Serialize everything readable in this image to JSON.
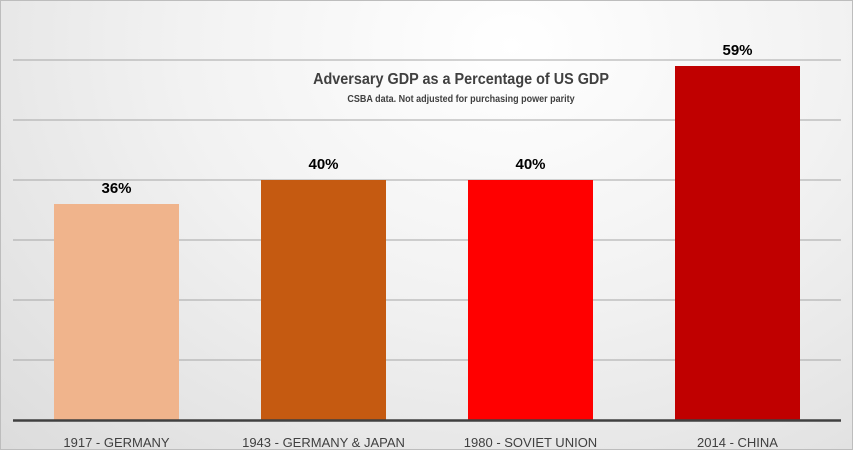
{
  "chart_data": {
    "type": "bar",
    "title": "Adversary GDP  as a Percentage of US GDP",
    "subtitle": "CSBA data. Not adjusted for purchasing power parity",
    "categories": [
      "1917 - GERMANY",
      "1943 - GERMANY & JAPAN",
      "1980 - SOVIET UNION",
      "2014 - CHINA"
    ],
    "values": [
      36,
      40,
      40,
      59
    ],
    "data_labels": [
      "36%",
      "40%",
      "40%",
      "59%"
    ],
    "colors": [
      "#f0b48c",
      "#c55a11",
      "#ff0000",
      "#c00000"
    ],
    "ylim": [
      0,
      60
    ],
    "grid": true,
    "xlabel": "",
    "ylabel": ""
  }
}
